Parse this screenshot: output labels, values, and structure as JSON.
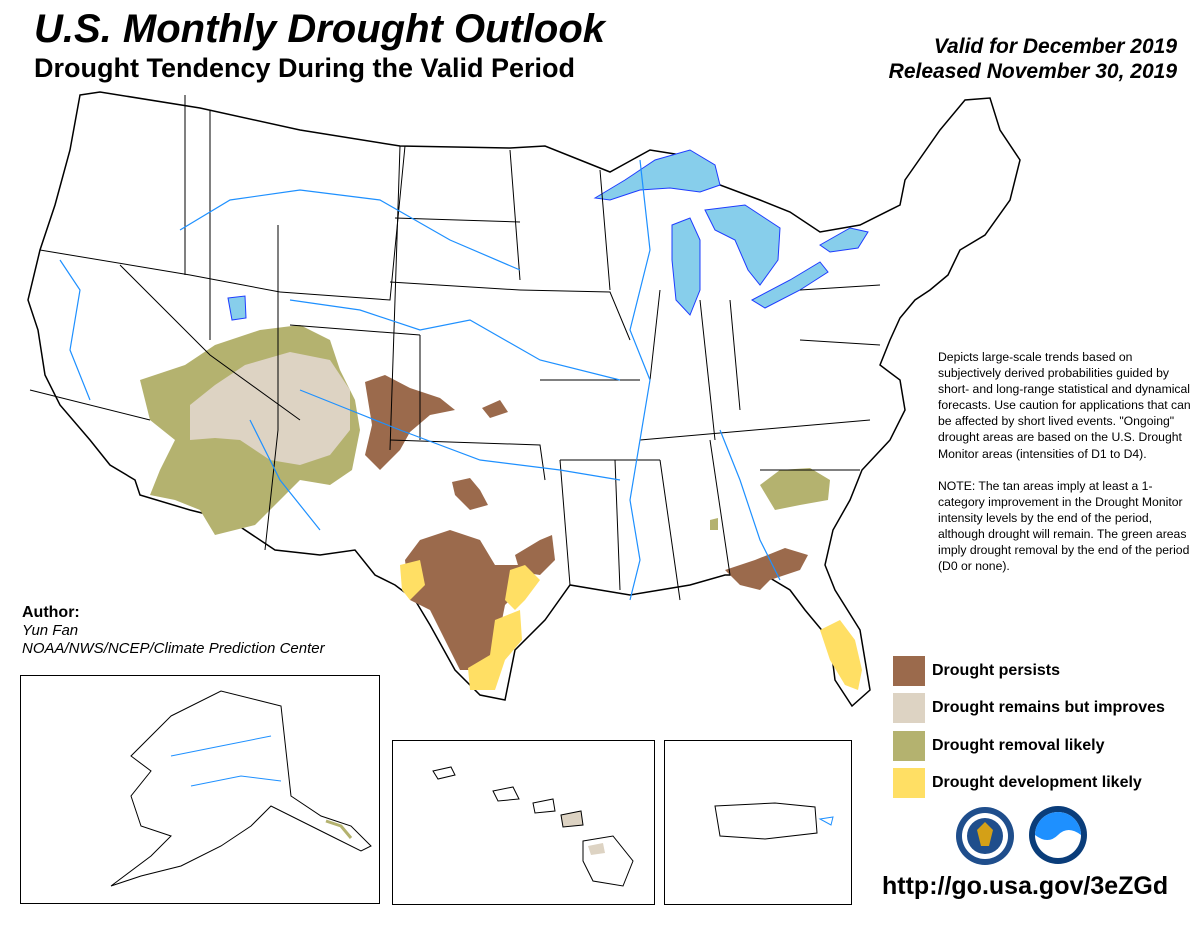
{
  "header": {
    "title": "U.S. Monthly Drought Outlook",
    "subtitle": "Drought Tendency During the Valid Period",
    "valid_line": "Valid for December 2019",
    "released_line": "Released November 30, 2019"
  },
  "description": {
    "para1": "Depicts large-scale trends based on subjectively derived probabilities guided by short- and long-range statistical and dynamical forecasts. Use caution for applications that can be affected by short lived events. \"Ongoing\" drought areas are based on the U.S. Drought Monitor areas (intensities of D1 to D4).",
    "para2": "NOTE: The tan areas imply at least a 1-category improvement in the Drought Monitor intensity levels by the end of the period, although drought will remain. The green areas imply drought removal by the end of the period (D0 or none)."
  },
  "legend": [
    {
      "label": "Drought persists",
      "color": "#9b6a4c"
    },
    {
      "label": "Drought remains but improves",
      "color": "#ddd3c3"
    },
    {
      "label": "Drought removal likely",
      "color": "#b4b26f"
    },
    {
      "label": "Drought development likely",
      "color": "#ffdf64"
    }
  ],
  "author": {
    "heading": "Author:",
    "name": "Yun Fan",
    "org": "NOAA/NWS/NCEP/Climate Prediction Center"
  },
  "url": "http://go.usa.gov/3eZGd",
  "colors": {
    "water": "#87ceeb",
    "river": "#1e90ff",
    "state_line": "#000000"
  },
  "logos": [
    "nws-seal-icon",
    "noaa-logo-icon"
  ]
}
